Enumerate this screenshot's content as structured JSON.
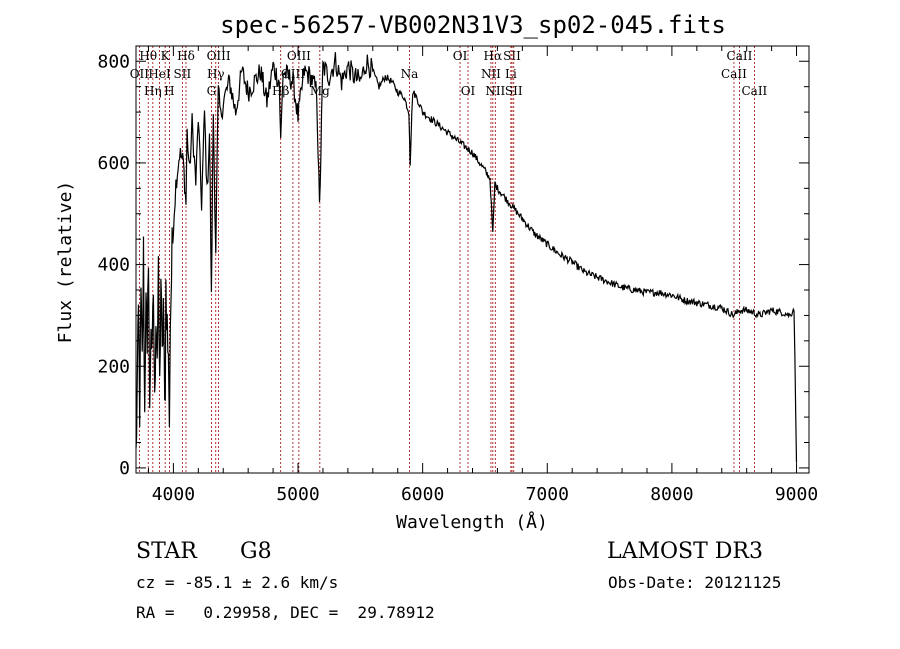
{
  "chart_data": {
    "type": "line",
    "title": "spec-56257-VB002N31V3_sp02-045.fits",
    "xlabel": "Wavelength (Å)",
    "ylabel": "Flux (relative)",
    "xlim": [
      3700,
      9100
    ],
    "ylim": [
      -10,
      830
    ],
    "xticks": [
      4000,
      5000,
      6000,
      7000,
      8000,
      9000
    ],
    "yticks": [
      0,
      200,
      400,
      600,
      800
    ],
    "series": [
      {
        "name": "flux",
        "x": [
          3700,
          3710,
          3720,
          3730,
          3740,
          3750,
          3760,
          3770,
          3780,
          3790,
          3800,
          3810,
          3820,
          3830,
          3840,
          3850,
          3860,
          3870,
          3880,
          3890,
          3900,
          3910,
          3920,
          3930,
          3935,
          3940,
          3950,
          3960,
          3968,
          3975,
          3990,
          4000,
          4020,
          4050,
          4080,
          4101,
          4110,
          4130,
          4150,
          4180,
          4200,
          4226,
          4250,
          4270,
          4290,
          4305,
          4320,
          4340,
          4360,
          4380,
          4400,
          4450,
          4500,
          4550,
          4600,
          4650,
          4700,
          4750,
          4800,
          4850,
          4861,
          4880,
          4920,
          4960,
          5000,
          5050,
          5100,
          5150,
          5172,
          5200,
          5250,
          5300,
          5350,
          5400,
          5450,
          5500,
          5550,
          5600,
          5650,
          5700,
          5750,
          5800,
          5850,
          5890,
          5900,
          5920,
          5950,
          6000,
          6100,
          6200,
          6300,
          6400,
          6500,
          6540,
          6563,
          6580,
          6600,
          6700,
          6800,
          6900,
          7000,
          7100,
          7200,
          7300,
          7400,
          7500,
          7600,
          7700,
          7800,
          7900,
          8000,
          8100,
          8200,
          8300,
          8400,
          8498,
          8542,
          8600,
          8662,
          8700,
          8800,
          8900,
          8950,
          8980,
          9000
        ],
        "values": [
          20,
          150,
          300,
          120,
          330,
          200,
          420,
          100,
          380,
          180,
          440,
          90,
          300,
          200,
          350,
          110,
          320,
          230,
          360,
          150,
          380,
          200,
          330,
          110,
          180,
          360,
          280,
          200,
          110,
          290,
          420,
          480,
          560,
          620,
          600,
          520,
          660,
          580,
          680,
          560,
          690,
          520,
          700,
          540,
          660,
          330,
          700,
          430,
          740,
          690,
          720,
          760,
          700,
          780,
          740,
          760,
          780,
          720,
          790,
          760,
          640,
          780,
          770,
          760,
          690,
          780,
          770,
          740,
          510,
          790,
          770,
          800,
          760,
          790,
          770,
          760,
          800,
          780,
          750,
          770,
          760,
          740,
          730,
          700,
          600,
          740,
          730,
          700,
          680,
          660,
          640,
          620,
          585,
          570,
          460,
          560,
          550,
          520,
          490,
          460,
          440,
          420,
          405,
          385,
          375,
          365,
          355,
          350,
          345,
          345,
          340,
          330,
          325,
          320,
          315,
          300,
          310,
          310,
          305,
          300,
          310,
          305,
          300,
          315,
          10
        ]
      }
    ],
    "lines": [
      {
        "name": "OII",
        "x": 3727,
        "row": 1
      },
      {
        "name": "Hθ",
        "x": 3798,
        "row": 0
      },
      {
        "name": "Hη",
        "x": 3835,
        "row": 2
      },
      {
        "name": "HeI",
        "x": 3889,
        "row": 1
      },
      {
        "name": "K",
        "x": 3934,
        "row": 0
      },
      {
        "name": "H",
        "x": 3968,
        "row": 2
      },
      {
        "name": "SII",
        "x": 4072,
        "row": 1
      },
      {
        "name": "Hδ",
        "x": 4101,
        "row": 0
      },
      {
        "name": "G",
        "x": 4305,
        "row": 2
      },
      {
        "name": "Hγ",
        "x": 4340,
        "row": 1
      },
      {
        "name": "OIII",
        "x": 4363,
        "row": 0
      },
      {
        "name": "Hβ",
        "x": 4861,
        "row": 2
      },
      {
        "name": "OIII",
        "x": 4959,
        "row": 1
      },
      {
        "name": "OIII",
        "x": 5007,
        "row": 0
      },
      {
        "name": "Mg",
        "x": 5175,
        "row": 2
      },
      {
        "name": "Na",
        "x": 5894,
        "row": 1
      },
      {
        "name": "OI",
        "x": 6300,
        "row": 0
      },
      {
        "name": "OI",
        "x": 6364,
        "row": 2
      },
      {
        "name": "NII",
        "x": 6548,
        "row": 1
      },
      {
        "name": "Hα",
        "x": 6563,
        "row": 0
      },
      {
        "name": "NII",
        "x": 6583,
        "row": 2
      },
      {
        "name": "Li",
        "x": 6708,
        "row": 1
      },
      {
        "name": "SII",
        "x": 6717,
        "row": 0
      },
      {
        "name": "SII",
        "x": 6731,
        "row": 2
      },
      {
        "name": "CaII",
        "x": 8498,
        "row": 1
      },
      {
        "name": "CaII",
        "x": 8542,
        "row": 0
      },
      {
        "name": "CaII",
        "x": 8662,
        "row": 2
      }
    ]
  },
  "info": {
    "class": "STAR",
    "subclass": "G8",
    "survey": "LAMOST DR3",
    "cz": "cz = -85.1 ± 2.6 km/s",
    "obs_date": "Obs-Date: 20121125",
    "coords": "RA =   0.29958, DEC =  29.78912"
  },
  "colors": {
    "line_marker": "#a00000",
    "spectrum": "#000000"
  }
}
